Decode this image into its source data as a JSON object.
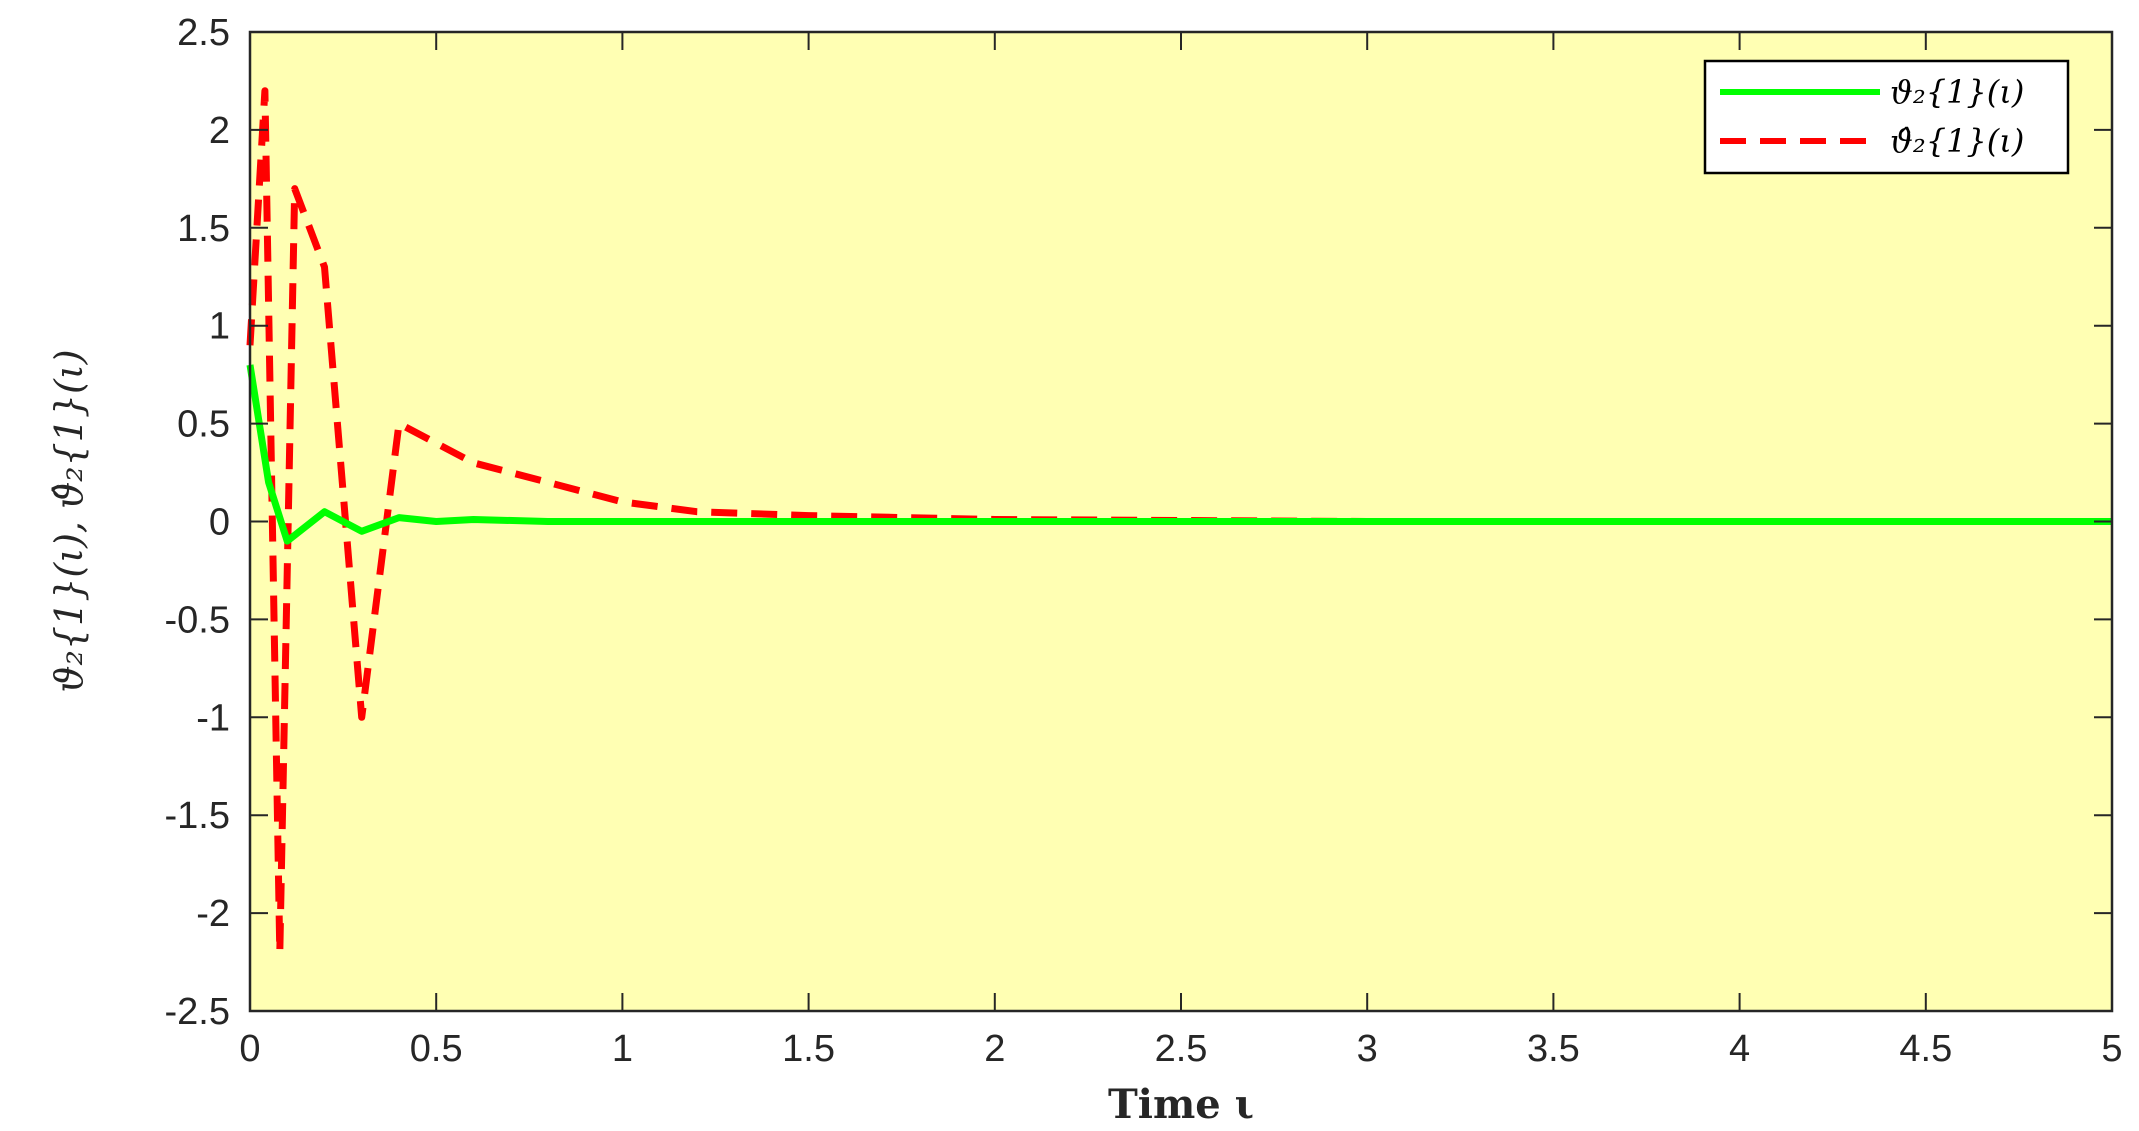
{
  "chart_data": {
    "type": "line",
    "xlabel": "Time ι",
    "ylabel": "ϑ₂{1}(ι), ϑ̂₂{1}(ι)",
    "xlim": [
      0,
      5
    ],
    "ylim": [
      -2.5,
      2.5
    ],
    "x_ticks": [
      "0",
      "0.5",
      "1",
      "1.5",
      "2",
      "2.5",
      "3",
      "3.5",
      "4",
      "4.5",
      "5"
    ],
    "y_ticks": [
      "2.5",
      "2",
      "1.5",
      "1",
      "0.5",
      "0",
      "-0.5",
      "-1",
      "-1.5",
      "-2",
      "-2.5"
    ],
    "grid": false,
    "legend_position": "top-right",
    "background_color": "#ffffb3",
    "series": [
      {
        "name": "ϑ₂{1}(ι)",
        "color": "#00ff00",
        "style": "solid",
        "x": [
          0,
          0.05,
          0.1,
          0.2,
          0.3,
          0.4,
          0.5,
          0.6,
          0.8,
          1.0,
          1.5,
          2.0,
          3.0,
          4.0,
          5.0
        ],
        "values": [
          0.8,
          0.2,
          -0.1,
          0.05,
          -0.05,
          0.02,
          0.0,
          0.01,
          0.0,
          0.0,
          0.0,
          0.0,
          0.0,
          0.0,
          0.0
        ]
      },
      {
        "name": "ϑ̂₂{1}(ι)",
        "color": "#ff0000",
        "style": "dashed",
        "x": [
          0,
          0.04,
          0.08,
          0.12,
          0.2,
          0.3,
          0.4,
          0.6,
          0.8,
          1.0,
          1.2,
          1.5,
          2.0,
          3.0,
          5.0
        ],
        "values": [
          0.9,
          2.2,
          -2.2,
          1.7,
          1.3,
          -1.0,
          0.5,
          0.3,
          0.2,
          0.1,
          0.05,
          0.03,
          0.01,
          0.0,
          0.0
        ]
      }
    ]
  }
}
